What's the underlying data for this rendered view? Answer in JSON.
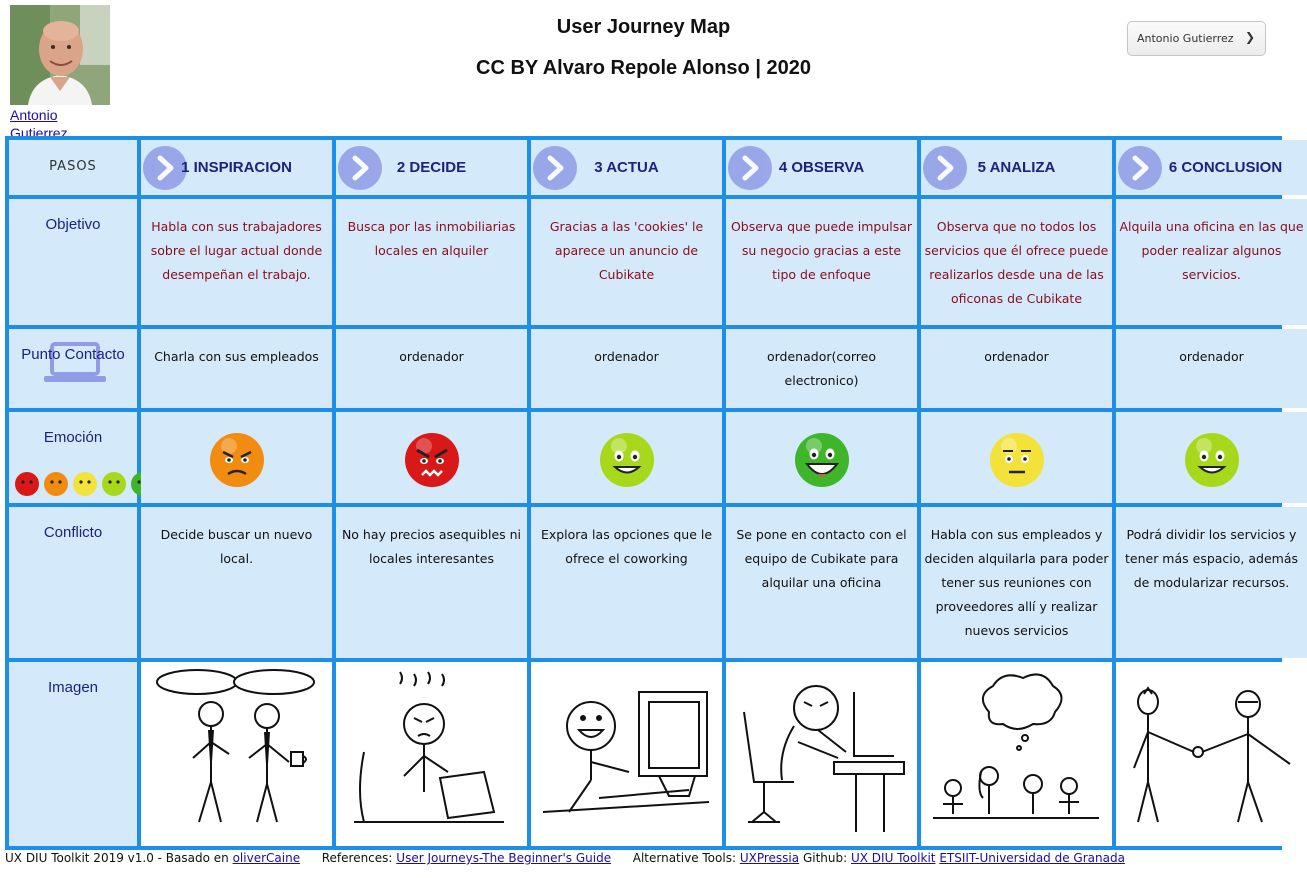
{
  "header": {
    "title": "User Journey Map",
    "subtitle": "CC BY Alvaro Repole Alonso | 2020"
  },
  "user": {
    "name_link": "Antonio Gutierrez",
    "selector_value": "Antonio Gutierrez"
  },
  "rows": {
    "pasos": "PASOS",
    "objetivo": "Objetivo",
    "punto_contacto": "Punto Contacto",
    "emocion": "Emoción",
    "conflicto": "Conflicto",
    "imagen": "Imagen"
  },
  "steps": [
    {
      "label": "1 INSPIRACION",
      "objetivo": "Habla con sus trabajadores sobre el lugar actual donde desempeñan el trabajo.",
      "contacto": "Charla con sus empleados",
      "emotion": "enfadado",
      "emotion_color": "#f28c10",
      "conflicto": "Decide buscar un nuevo local."
    },
    {
      "label": "2 DECIDE",
      "objetivo": "Busca por las inmobiliarias locales en alquiler",
      "contacto": "ordenador",
      "emotion": "furioso",
      "emotion_color": "#d91818",
      "conflicto": "No hay precios asequibles ni locales interesantes"
    },
    {
      "label": "3 ACTUA",
      "objetivo": "Gracias a las 'cookies' le aparece un anuncio de Cubikate",
      "contacto": "ordenador",
      "emotion": "contento",
      "emotion_color": "#a8d81c",
      "conflicto": "Explora las opciones que le ofrece el coworking"
    },
    {
      "label": "4 OBSERVA",
      "objetivo": "Observa que puede impulsar su negocio gracias a este tipo de enfoque",
      "contacto": "ordenador(correo electronico)",
      "emotion": "muy contento",
      "emotion_color": "#3fb52a",
      "conflicto": "Se pone en contacto con el equipo de Cubikate para alquilar una oficina"
    },
    {
      "label": "5 ANALIZA",
      "objetivo": "Observa que no todos los servicios que él ofrece puede realizarlos desde una de las oficonas de Cubikate",
      "contacto": "ordenador",
      "emotion": "neutral",
      "emotion_color": "#f3e23a",
      "conflicto": "Habla con sus empleados y deciden alquilarla para poder tener sus reuniones con proveedores allí y realizar nuevos servicios"
    },
    {
      "label": "6 CONCLUSION",
      "objetivo": "Alquila una oficina en las que poder realizar algunos servicios.",
      "contacto": "ordenador",
      "emotion": "contento",
      "emotion_color": "#a8d81c",
      "conflicto": "Podrá dividir los servicios y tener más espacio, además de modularizar recursos."
    }
  ],
  "emotion_scale_colors": [
    "#d91818",
    "#f28c10",
    "#f3e23a",
    "#a8d81c",
    "#3fb52a"
  ],
  "colors": {
    "grid_border": "#1e8fe8",
    "cell_bg": "#d4e9fa",
    "heading_text": "#1a237e",
    "objective_text": "#8b0d1a",
    "arrow_circle": "#8f9ce6"
  },
  "footer": {
    "toolkit_text": "UX DIU Toolkit 2019 v1.0 - Basado en",
    "toolkit_link": "oliverCaine",
    "references_label": "References:",
    "references_link": "User Journeys-The Beginner's Guide",
    "alternative_label": "Alternative Tools:",
    "alternative_link": "UXPressia",
    "github_label": "Github:",
    "github_link": "UX DIU Toolkit",
    "university_link": "ETSIIT-Universidad de Granada"
  }
}
